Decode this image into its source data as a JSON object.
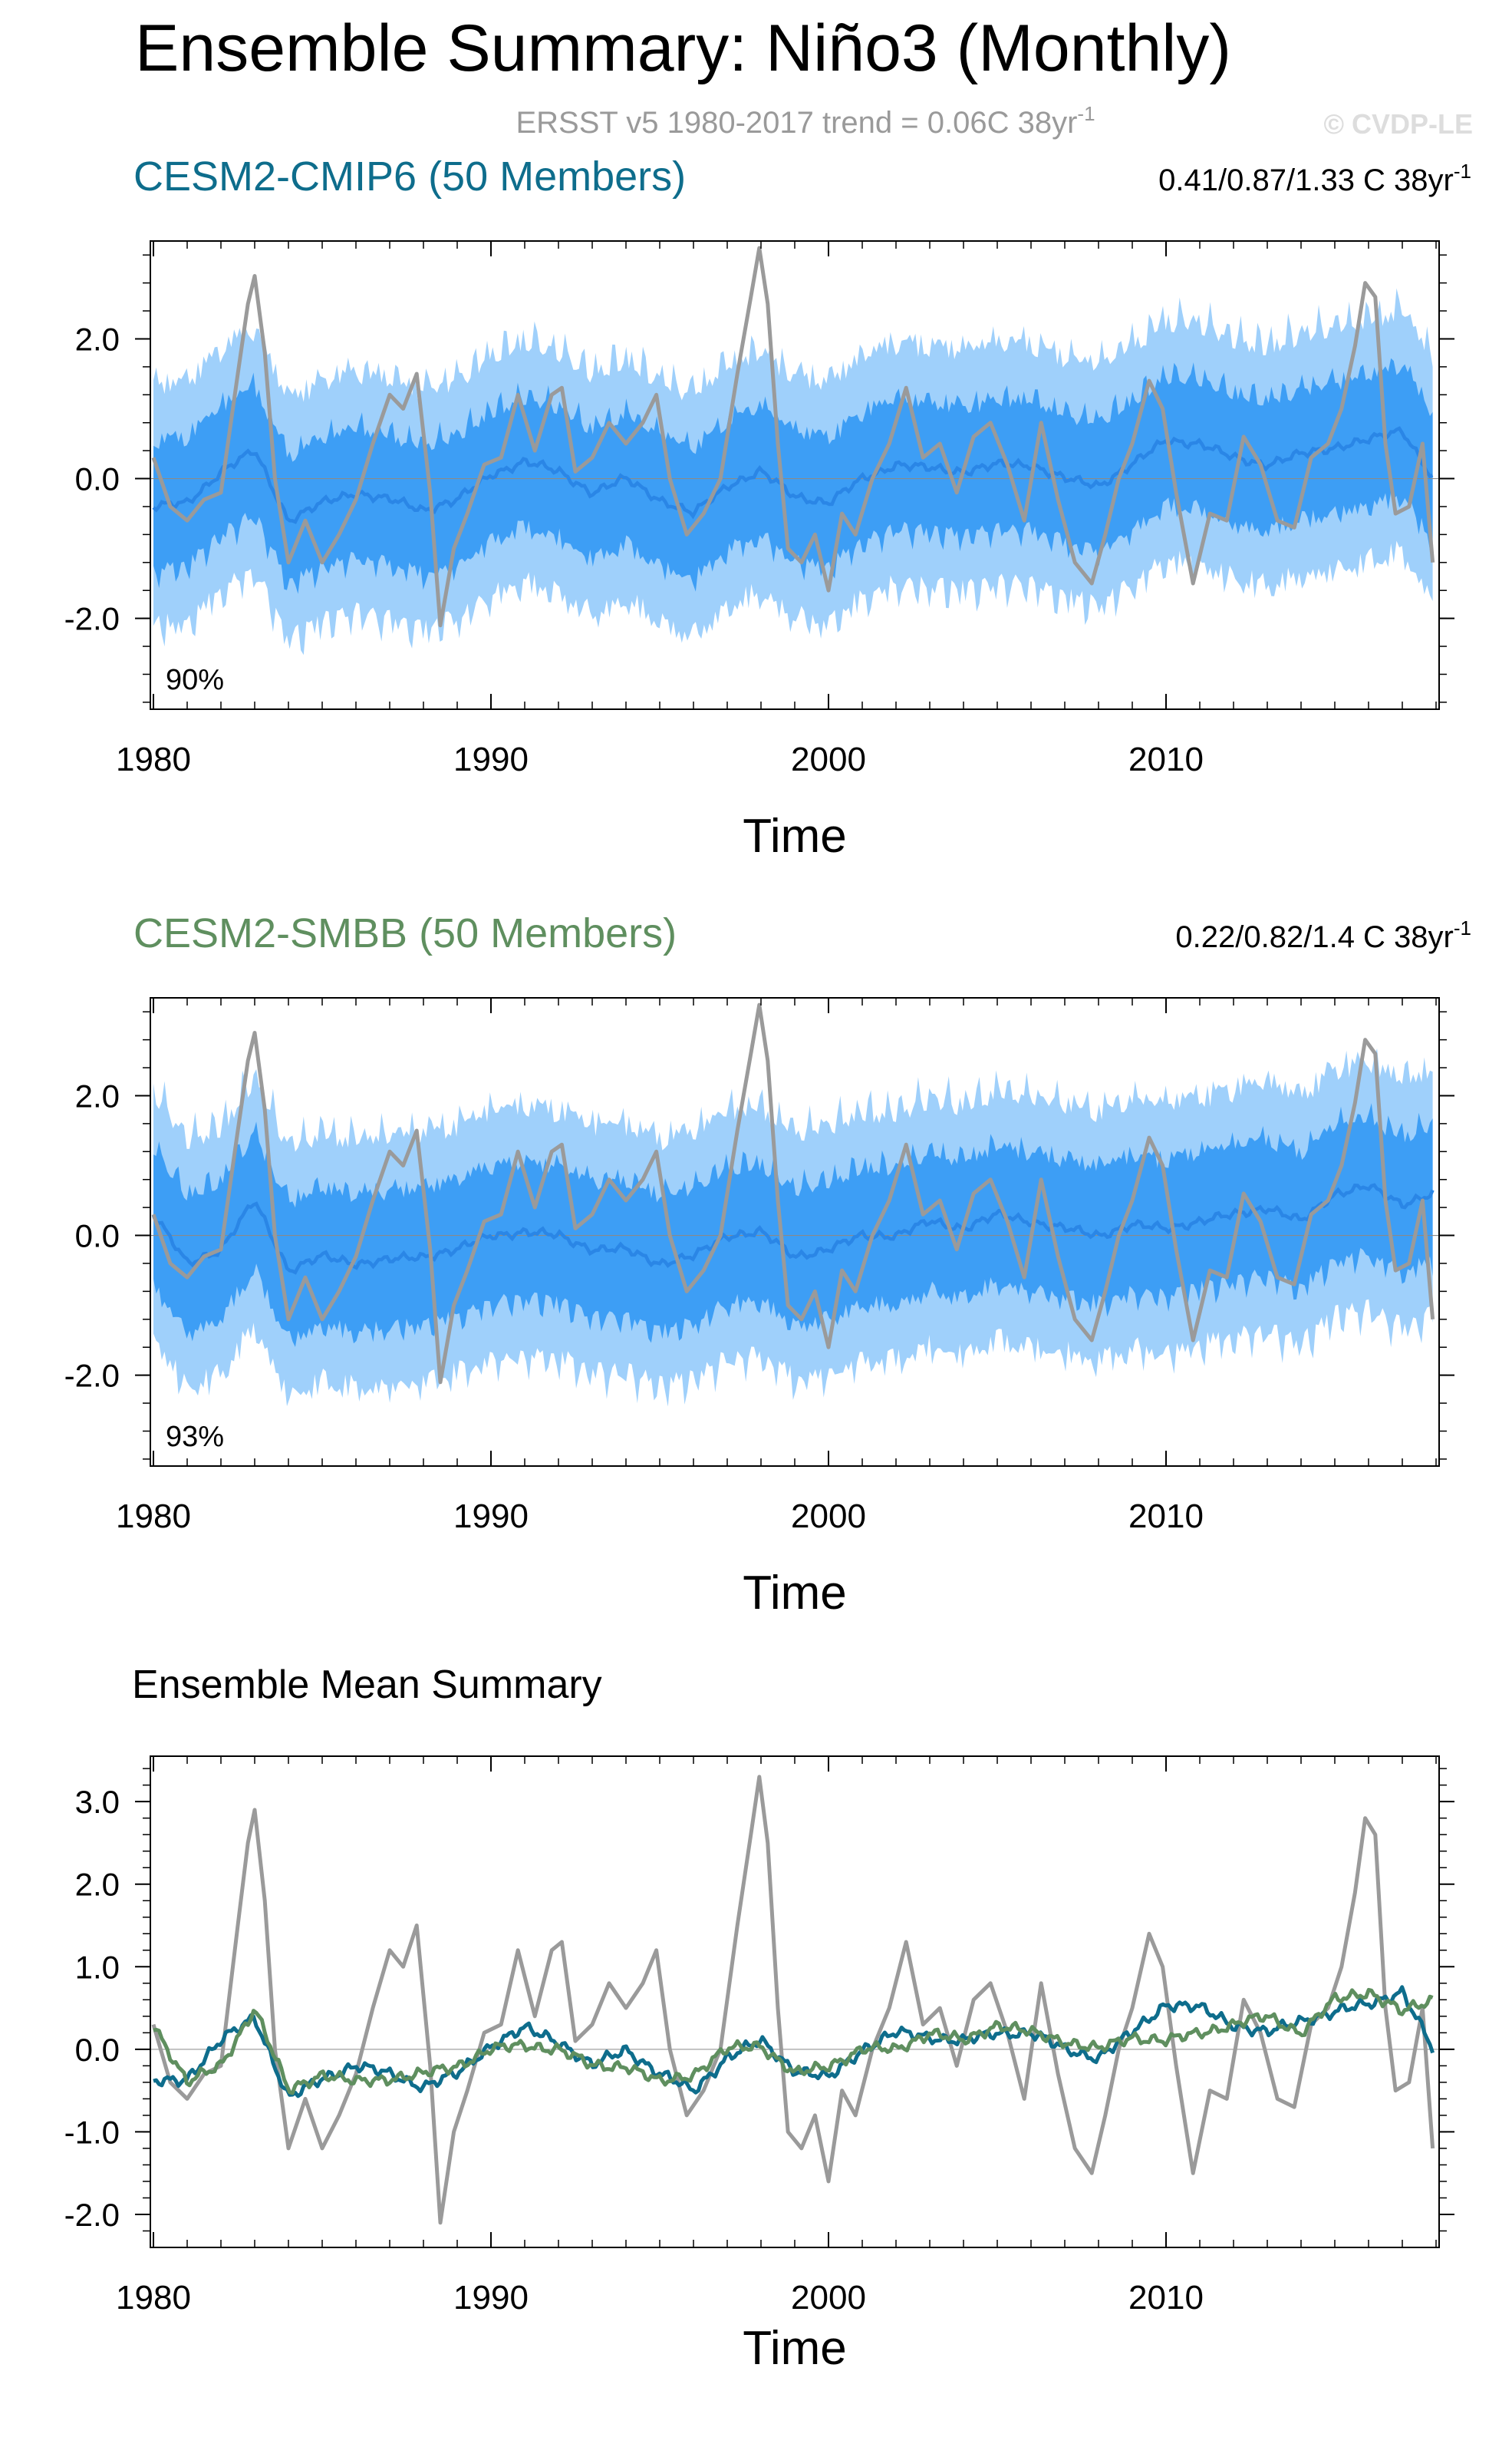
{
  "header": {
    "title": "Ensemble Summary: Niño3 (Monthly)",
    "obs_prefix": "ERSST v5 1980-2017 trend = 0.06C 38yr",
    "obs_sup": "-1",
    "copyright": "© CVDP-LE"
  },
  "colors": {
    "obs": "#9a9a9a",
    "spread_outer": "#9fd0fb",
    "spread_inner": "#3d9ef5",
    "ens_mean": "#2a86e6",
    "cmip6": "#0e6d8c",
    "smbb": "#5f8f5f",
    "zero_line": "#b0b0b0"
  },
  "chart_data": [
    {
      "type": "area",
      "id": "cmip6",
      "title": "CESM2-CMIP6 (50 Members)",
      "stats_prefix": "0.41/0.87/1.33 C 38yr",
      "stats_sup": "-1",
      "pct_label": "90%",
      "xlabel": "Time",
      "xlim": [
        1980,
        2018
      ],
      "xticks": [
        1980,
        1990,
        2000,
        2010
      ],
      "xtick_labels": [
        "1980",
        "1990",
        "2000",
        "2010"
      ],
      "ylim": [
        -3.3,
        3.4
      ],
      "yticks": [
        -2,
        0,
        2
      ],
      "ytick_labels": [
        "-2.0",
        "0.0",
        "2.0"
      ],
      "trend": 0.018,
      "band_outer": 1.55,
      "band_inner": 0.8,
      "series": [
        {
          "name": "Ensemble mean",
          "x": [
            1980.0,
            1981.0,
            1982.0,
            1983.0,
            1984.0,
            1985.0,
            1986.0,
            1987.0,
            1988.0,
            1989.0,
            1990.0,
            1991.0,
            1992.0,
            1993.0,
            1994.0,
            1995.0,
            1996.0,
            1997.0,
            1998.0,
            1999.0,
            2000.0,
            2001.0,
            2002.0,
            2003.0,
            2004.0,
            2005.0,
            2006.0,
            2007.0,
            2008.0,
            2009.0,
            2010.0,
            2011.0,
            2012.0,
            2013.0,
            2014.0,
            2015.0,
            2016.0,
            2017.0,
            2017.9
          ],
          "values": [
            -0.4,
            -0.35,
            0.1,
            0.4,
            -0.6,
            -0.35,
            -0.2,
            -0.3,
            -0.45,
            -0.3,
            0.05,
            0.25,
            0.1,
            -0.2,
            0.0,
            -0.3,
            -0.5,
            -0.1,
            0.1,
            -0.25,
            -0.35,
            0.0,
            0.2,
            0.15,
            0.1,
            0.2,
            0.2,
            0.0,
            -0.1,
            0.2,
            0.55,
            0.5,
            0.3,
            0.2,
            0.35,
            0.45,
            0.55,
            0.7,
            0.0
          ]
        },
        {
          "name": "ERSST v5",
          "x": [
            1980.0,
            1980.5,
            1981.0,
            1981.5,
            1982.0,
            1982.5,
            1982.8,
            1983.0,
            1983.3,
            1983.6,
            1984.0,
            1984.5,
            1985.0,
            1985.5,
            1986.0,
            1986.5,
            1987.0,
            1987.4,
            1987.8,
            1988.2,
            1988.5,
            1988.9,
            1989.3,
            1989.8,
            1990.3,
            1990.8,
            1991.3,
            1991.8,
            1992.1,
            1992.5,
            1993.0,
            1993.5,
            1994.0,
            1994.5,
            1994.9,
            1995.3,
            1995.8,
            1996.3,
            1996.8,
            1997.3,
            1997.7,
            1997.95,
            1998.2,
            1998.5,
            1998.8,
            1999.2,
            1999.6,
            2000.0,
            2000.4,
            2000.8,
            2001.3,
            2001.8,
            2002.3,
            2002.8,
            2003.3,
            2003.8,
            2004.3,
            2004.8,
            2005.3,
            2005.8,
            2006.3,
            2006.8,
            2007.3,
            2007.8,
            2008.2,
            2008.6,
            2009.0,
            2009.5,
            2009.9,
            2010.3,
            2010.8,
            2011.3,
            2011.8,
            2012.3,
            2012.8,
            2013.3,
            2013.8,
            2014.3,
            2014.8,
            2015.2,
            2015.6,
            2015.9,
            2016.2,
            2016.5,
            2016.8,
            2017.2,
            2017.6,
            2017.9
          ],
          "values": [
            0.3,
            -0.4,
            -0.6,
            -0.3,
            -0.2,
            1.5,
            2.5,
            2.9,
            1.8,
            0.0,
            -1.2,
            -0.6,
            -1.2,
            -0.8,
            -0.3,
            0.5,
            1.2,
            1.0,
            1.5,
            -0.2,
            -2.1,
            -1.0,
            -0.5,
            0.2,
            0.3,
            1.2,
            0.4,
            1.2,
            1.3,
            0.1,
            0.3,
            0.8,
            0.5,
            0.8,
            1.2,
            0.0,
            -0.8,
            -0.5,
            0.0,
            1.5,
            2.6,
            3.3,
            2.5,
            0.5,
            -1.0,
            -1.2,
            -0.8,
            -1.6,
            -0.5,
            -0.8,
            0.0,
            0.5,
            1.3,
            0.3,
            0.5,
            -0.2,
            0.6,
            0.8,
            0.2,
            -0.6,
            0.8,
            -0.3,
            -1.2,
            -1.5,
            -0.8,
            0.0,
            0.5,
            1.4,
            1.0,
            -0.2,
            -1.5,
            -0.5,
            -0.6,
            0.6,
            0.2,
            -0.6,
            -0.7,
            0.3,
            0.5,
            1.0,
            1.9,
            2.8,
            2.6,
            0.5,
            -0.5,
            -0.4,
            0.5,
            -1.2
          ]
        }
      ]
    },
    {
      "type": "area",
      "id": "smbb",
      "title": "CESM2-SMBB (50 Members)",
      "stats_prefix": "0.22/0.82/1.4 C 38yr",
      "stats_sup": "-1",
      "pct_label": "93%",
      "xlabel": "Time",
      "xlim": [
        1980,
        2018
      ],
      "xticks": [
        1980,
        1990,
        2000,
        2010
      ],
      "xtick_labels": [
        "1980",
        "1990",
        "2000",
        "2010"
      ],
      "ylim": [
        -3.3,
        3.4
      ],
      "yticks": [
        -2,
        0,
        2
      ],
      "ytick_labels": [
        "-2.0",
        "0.0",
        "2.0"
      ],
      "trend": 0.021,
      "band_outer": 1.6,
      "band_inner": 0.85,
      "series": [
        {
          "name": "Ensemble mean",
          "x": [
            1980.0,
            1981.0,
            1982.0,
            1983.0,
            1984.0,
            1985.0,
            1986.0,
            1987.0,
            1988.0,
            1989.0,
            1990.0,
            1991.0,
            1992.0,
            1993.0,
            1994.0,
            1995.0,
            1996.0,
            1997.0,
            1998.0,
            1999.0,
            2000.0,
            2001.0,
            2002.0,
            2003.0,
            2004.0,
            2005.0,
            2006.0,
            2007.0,
            2008.0,
            2009.0,
            2010.0,
            2011.0,
            2012.0,
            2013.0,
            2014.0,
            2015.0,
            2016.0,
            2017.0,
            2017.9
          ],
          "values": [
            0.3,
            -0.4,
            -0.2,
            0.5,
            -0.5,
            -0.3,
            -0.4,
            -0.35,
            -0.3,
            -0.2,
            0.0,
            0.05,
            0.0,
            -0.2,
            -0.2,
            -0.4,
            -0.3,
            0.0,
            0.05,
            -0.3,
            -0.2,
            0.0,
            0.0,
            0.2,
            0.1,
            0.3,
            0.2,
            0.1,
            0.0,
            0.15,
            0.1,
            0.2,
            0.3,
            0.4,
            0.2,
            0.6,
            0.7,
            0.45,
            0.6
          ]
        },
        {
          "name": "ERSST v5",
          "x": [
            1980.0,
            1980.5,
            1981.0,
            1981.5,
            1982.0,
            1982.5,
            1982.8,
            1983.0,
            1983.3,
            1983.6,
            1984.0,
            1984.5,
            1985.0,
            1985.5,
            1986.0,
            1986.5,
            1987.0,
            1987.4,
            1987.8,
            1988.2,
            1988.5,
            1988.9,
            1989.3,
            1989.8,
            1990.3,
            1990.8,
            1991.3,
            1991.8,
            1992.1,
            1992.5,
            1993.0,
            1993.5,
            1994.0,
            1994.5,
            1994.9,
            1995.3,
            1995.8,
            1996.3,
            1996.8,
            1997.3,
            1997.7,
            1997.95,
            1998.2,
            1998.5,
            1998.8,
            1999.2,
            1999.6,
            2000.0,
            2000.4,
            2000.8,
            2001.3,
            2001.8,
            2002.3,
            2002.8,
            2003.3,
            2003.8,
            2004.3,
            2004.8,
            2005.3,
            2005.8,
            2006.3,
            2006.8,
            2007.3,
            2007.8,
            2008.2,
            2008.6,
            2009.0,
            2009.5,
            2009.9,
            2010.3,
            2010.8,
            2011.3,
            2011.8,
            2012.3,
            2012.8,
            2013.3,
            2013.8,
            2014.3,
            2014.8,
            2015.2,
            2015.6,
            2015.9,
            2016.2,
            2016.5,
            2016.8,
            2017.2,
            2017.6,
            2017.9
          ],
          "values": [
            0.3,
            -0.4,
            -0.6,
            -0.3,
            -0.2,
            1.5,
            2.5,
            2.9,
            1.8,
            0.0,
            -1.2,
            -0.6,
            -1.2,
            -0.8,
            -0.3,
            0.5,
            1.2,
            1.0,
            1.5,
            -0.2,
            -2.1,
            -1.0,
            -0.5,
            0.2,
            0.3,
            1.2,
            0.4,
            1.2,
            1.3,
            0.1,
            0.3,
            0.8,
            0.5,
            0.8,
            1.2,
            0.0,
            -0.8,
            -0.5,
            0.0,
            1.5,
            2.6,
            3.3,
            2.5,
            0.5,
            -1.0,
            -1.2,
            -0.8,
            -1.6,
            -0.5,
            -0.8,
            0.0,
            0.5,
            1.3,
            0.3,
            0.5,
            -0.2,
            0.6,
            0.8,
            0.2,
            -0.6,
            0.8,
            -0.3,
            -1.2,
            -1.5,
            -0.8,
            0.0,
            0.5,
            1.4,
            1.0,
            -0.2,
            -1.5,
            -0.5,
            -0.6,
            0.6,
            0.2,
            -0.6,
            -0.7,
            0.3,
            0.5,
            1.0,
            1.9,
            2.8,
            2.6,
            0.5,
            -0.5,
            -0.4,
            0.5,
            -1.2
          ]
        }
      ]
    },
    {
      "type": "line",
      "id": "mean",
      "title": "Ensemble Mean Summary",
      "xlabel": "Time",
      "xlim": [
        1980,
        2018
      ],
      "xticks": [
        1980,
        1990,
        2000,
        2010
      ],
      "xtick_labels": [
        "1980",
        "1990",
        "2000",
        "2010"
      ],
      "ylim": [
        -2.4,
        3.55
      ],
      "yticks": [
        -2,
        -1,
        0,
        1,
        2,
        3
      ],
      "ytick_labels": [
        "-2.0",
        "-1.0",
        "0.0",
        "1.0",
        "2.0",
        "3.0"
      ],
      "series": [
        {
          "name": "ERSST v5",
          "x": [
            1980.0,
            1980.5,
            1981.0,
            1981.5,
            1982.0,
            1982.5,
            1982.8,
            1983.0,
            1983.3,
            1983.6,
            1984.0,
            1984.5,
            1985.0,
            1985.5,
            1986.0,
            1986.5,
            1987.0,
            1987.4,
            1987.8,
            1988.2,
            1988.5,
            1988.9,
            1989.3,
            1989.8,
            1990.3,
            1990.8,
            1991.3,
            1991.8,
            1992.1,
            1992.5,
            1993.0,
            1993.5,
            1994.0,
            1994.5,
            1994.9,
            1995.3,
            1995.8,
            1996.3,
            1996.8,
            1997.3,
            1997.7,
            1997.95,
            1998.2,
            1998.5,
            1998.8,
            1999.2,
            1999.6,
            2000.0,
            2000.4,
            2000.8,
            2001.3,
            2001.8,
            2002.3,
            2002.8,
            2003.3,
            2003.8,
            2004.3,
            2004.8,
            2005.3,
            2005.8,
            2006.3,
            2006.8,
            2007.3,
            2007.8,
            2008.2,
            2008.6,
            2009.0,
            2009.5,
            2009.9,
            2010.3,
            2010.8,
            2011.3,
            2011.8,
            2012.3,
            2012.8,
            2013.3,
            2013.8,
            2014.3,
            2014.8,
            2015.2,
            2015.6,
            2015.9,
            2016.2,
            2016.5,
            2016.8,
            2017.2,
            2017.6,
            2017.9
          ],
          "values": [
            0.3,
            -0.4,
            -0.6,
            -0.3,
            -0.2,
            1.5,
            2.5,
            2.9,
            1.8,
            0.0,
            -1.2,
            -0.6,
            -1.2,
            -0.8,
            -0.3,
            0.5,
            1.2,
            1.0,
            1.5,
            -0.2,
            -2.1,
            -1.0,
            -0.5,
            0.2,
            0.3,
            1.2,
            0.4,
            1.2,
            1.3,
            0.1,
            0.3,
            0.8,
            0.5,
            0.8,
            1.2,
            0.0,
            -0.8,
            -0.5,
            0.0,
            1.5,
            2.6,
            3.3,
            2.5,
            0.5,
            -1.0,
            -1.2,
            -0.8,
            -1.6,
            -0.5,
            -0.8,
            0.0,
            0.5,
            1.3,
            0.3,
            0.5,
            -0.2,
            0.6,
            0.8,
            0.2,
            -0.6,
            0.8,
            -0.3,
            -1.2,
            -1.5,
            -0.8,
            0.0,
            0.5,
            1.4,
            1.0,
            -0.2,
            -1.5,
            -0.5,
            -0.6,
            0.6,
            0.2,
            -0.6,
            -0.7,
            0.3,
            0.5,
            1.0,
            1.9,
            2.8,
            2.6,
            0.5,
            -0.5,
            -0.4,
            0.5,
            -1.2
          ]
        },
        {
          "name": "CESM2-CMIP6",
          "x": [
            1980.0,
            1981.0,
            1982.0,
            1983.0,
            1984.0,
            1985.0,
            1986.0,
            1987.0,
            1988.0,
            1989.0,
            1990.0,
            1991.0,
            1992.0,
            1993.0,
            1994.0,
            1995.0,
            1996.0,
            1997.0,
            1998.0,
            1999.0,
            2000.0,
            2001.0,
            2002.0,
            2003.0,
            2004.0,
            2005.0,
            2006.0,
            2007.0,
            2008.0,
            2009.0,
            2010.0,
            2011.0,
            2012.0,
            2013.0,
            2014.0,
            2015.0,
            2016.0,
            2017.0,
            2017.9
          ],
          "values": [
            -0.4,
            -0.35,
            0.1,
            0.4,
            -0.6,
            -0.35,
            -0.2,
            -0.3,
            -0.45,
            -0.3,
            0.05,
            0.25,
            0.1,
            -0.2,
            0.0,
            -0.3,
            -0.5,
            -0.1,
            0.1,
            -0.25,
            -0.35,
            0.0,
            0.2,
            0.15,
            0.1,
            0.2,
            0.2,
            0.0,
            -0.1,
            0.2,
            0.55,
            0.5,
            0.3,
            0.2,
            0.35,
            0.45,
            0.55,
            0.7,
            0.0
          ]
        },
        {
          "name": "CESM2-SMBB",
          "x": [
            1980.0,
            1981.0,
            1982.0,
            1983.0,
            1984.0,
            1985.0,
            1986.0,
            1987.0,
            1988.0,
            1989.0,
            1990.0,
            1991.0,
            1992.0,
            1993.0,
            1994.0,
            1995.0,
            1996.0,
            1997.0,
            1998.0,
            1999.0,
            2000.0,
            2001.0,
            2002.0,
            2003.0,
            2004.0,
            2005.0,
            2006.0,
            2007.0,
            2008.0,
            2009.0,
            2010.0,
            2011.0,
            2012.0,
            2013.0,
            2014.0,
            2015.0,
            2016.0,
            2017.0,
            2017.9
          ],
          "values": [
            0.3,
            -0.4,
            -0.2,
            0.5,
            -0.5,
            -0.3,
            -0.4,
            -0.35,
            -0.3,
            -0.2,
            0.0,
            0.05,
            0.0,
            -0.2,
            -0.2,
            -0.4,
            -0.3,
            0.0,
            0.05,
            -0.3,
            -0.2,
            0.0,
            0.0,
            0.2,
            0.1,
            0.3,
            0.2,
            0.1,
            0.0,
            0.15,
            0.1,
            0.2,
            0.3,
            0.4,
            0.2,
            0.6,
            0.7,
            0.45,
            0.6
          ]
        }
      ]
    }
  ]
}
